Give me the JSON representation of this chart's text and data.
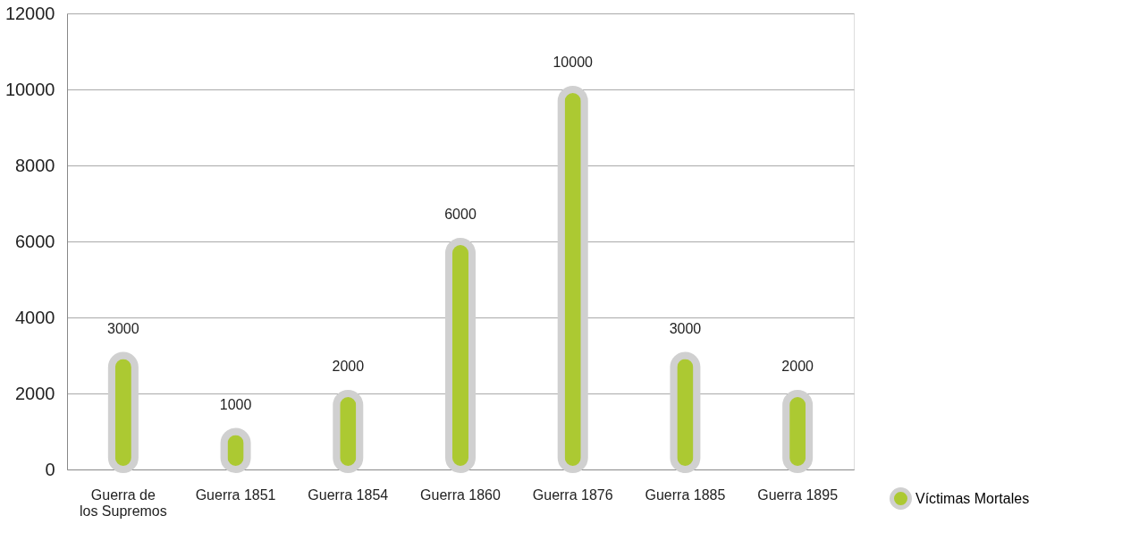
{
  "chart_data": {
    "type": "bar",
    "categories": [
      "Guerra de los Supremos",
      "Guerra 1851",
      "Guerra 1854",
      "Guerra 1860",
      "Guerra 1876",
      "Guerra 1885",
      "Guerra 1895"
    ],
    "series": [
      {
        "name": "Víctimas Mortales",
        "color": "#acc932",
        "values": [
          3000,
          1000,
          2000,
          6000,
          10000,
          3000,
          2000
        ]
      }
    ],
    "ylim": [
      0,
      12000
    ],
    "yticks": [
      0,
      2000,
      4000,
      6000,
      8000,
      10000,
      12000
    ],
    "grid": "y",
    "legend": "bottom right",
    "data_labels": true
  }
}
